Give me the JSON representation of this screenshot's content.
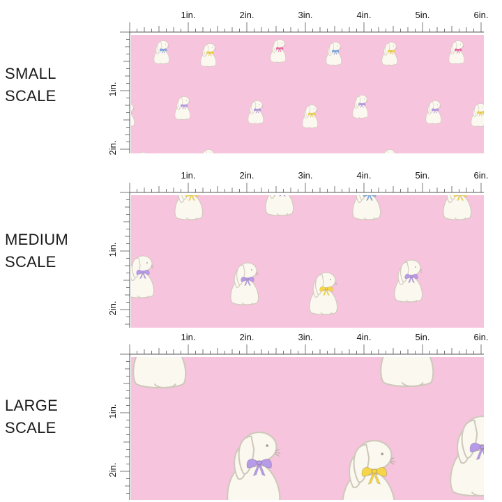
{
  "unit_labels": [
    "1in.",
    "2in.",
    "3in.",
    "4in.",
    "5in.",
    "6in."
  ],
  "side_labels": [
    "1in.",
    "2in."
  ],
  "rows": [
    {
      "id": "small",
      "label_line1": "SMALL",
      "label_line2": "SCALE"
    },
    {
      "id": "medium",
      "label_line1": "MEDIUM",
      "label_line2": "SCALE"
    },
    {
      "id": "large",
      "label_line1": "LARGE",
      "label_line2": "SCALE"
    }
  ],
  "colors": {
    "fabric_pink": "#f6c4dc",
    "bunny_cream": "#fbf8ef",
    "bunny_outline": "#cfc9bc",
    "bow_blue": "#7fa9e8",
    "bow_yellow": "#f6d548",
    "bow_pink": "#f06aa8",
    "bow_purple": "#b79be8",
    "ruler_line": "#555555"
  }
}
